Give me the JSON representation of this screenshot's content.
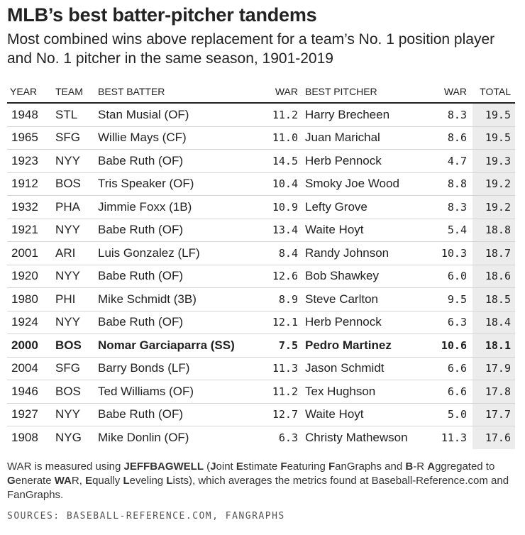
{
  "title": "MLB’s best batter-pitcher tandems",
  "subtitle": "Most combined wins above replacement for a team’s No. 1 position player and No. 1 pitcher in the same season, 1901-2019",
  "footnote_parts": [
    {
      "text": "WAR is measured using ",
      "bold": false
    },
    {
      "text": "JEFFBAGWELL",
      "bold": true
    },
    {
      "text": " (",
      "bold": false
    },
    {
      "text": "J",
      "bold": true
    },
    {
      "text": "oint ",
      "bold": false
    },
    {
      "text": "E",
      "bold": true
    },
    {
      "text": "stimate ",
      "bold": false
    },
    {
      "text": "F",
      "bold": true
    },
    {
      "text": "eaturing ",
      "bold": false
    },
    {
      "text": "F",
      "bold": true
    },
    {
      "text": "anGraphs and ",
      "bold": false
    },
    {
      "text": "B",
      "bold": true
    },
    {
      "text": "-R ",
      "bold": false
    },
    {
      "text": "A",
      "bold": true
    },
    {
      "text": "ggregated to ",
      "bold": false
    },
    {
      "text": "G",
      "bold": true
    },
    {
      "text": "enerate ",
      "bold": false
    },
    {
      "text": "WA",
      "bold": true
    },
    {
      "text": "R, ",
      "bold": false
    },
    {
      "text": "E",
      "bold": true
    },
    {
      "text": "qually ",
      "bold": false
    },
    {
      "text": "L",
      "bold": true
    },
    {
      "text": "eveling ",
      "bold": false
    },
    {
      "text": "L",
      "bold": true
    },
    {
      "text": "ists), which averages the metrics found at Baseball-Reference.com and FanGraphs.",
      "bold": false
    }
  ],
  "sources": "SOURCES: BASEBALL-REFERENCE.COM, FANGRAPHS",
  "colors": {
    "total_column_bg": "#ececec",
    "rule": "#222222",
    "row_divider": "#d4d4d4"
  },
  "chart_data": {
    "type": "table",
    "title": "MLB’s best batter-pitcher tandems",
    "subtitle": "Most combined wins above replacement for a team’s No. 1 position player and No. 1 pitcher in the same season, 1901-2019",
    "columns": [
      "YEAR",
      "TEAM",
      "BEST BATTER",
      "WAR",
      "BEST PITCHER",
      "WAR",
      "TOTAL"
    ],
    "highlight_year": "2000",
    "rows": [
      {
        "year": "1948",
        "team": "STL",
        "batter": "Stan Musial (OF)",
        "batter_war": "11.2",
        "pitcher": "Harry Brecheen",
        "pitcher_war": "8.3",
        "total": "19.5"
      },
      {
        "year": "1965",
        "team": "SFG",
        "batter": "Willie Mays (CF)",
        "batter_war": "11.0",
        "pitcher": "Juan Marichal",
        "pitcher_war": "8.6",
        "total": "19.5"
      },
      {
        "year": "1923",
        "team": "NYY",
        "batter": "Babe Ruth (OF)",
        "batter_war": "14.5",
        "pitcher": "Herb Pennock",
        "pitcher_war": "4.7",
        "total": "19.3"
      },
      {
        "year": "1912",
        "team": "BOS",
        "batter": "Tris Speaker (OF)",
        "batter_war": "10.4",
        "pitcher": "Smoky Joe Wood",
        "pitcher_war": "8.8",
        "total": "19.2"
      },
      {
        "year": "1932",
        "team": "PHA",
        "batter": "Jimmie Foxx (1B)",
        "batter_war": "10.9",
        "pitcher": "Lefty Grove",
        "pitcher_war": "8.3",
        "total": "19.2"
      },
      {
        "year": "1921",
        "team": "NYY",
        "batter": "Babe Ruth (OF)",
        "batter_war": "13.4",
        "pitcher": "Waite Hoyt",
        "pitcher_war": "5.4",
        "total": "18.8"
      },
      {
        "year": "2001",
        "team": "ARI",
        "batter": "Luis Gonzalez (LF)",
        "batter_war": "8.4",
        "pitcher": "Randy Johnson",
        "pitcher_war": "10.3",
        "total": "18.7"
      },
      {
        "year": "1920",
        "team": "NYY",
        "batter": "Babe Ruth (OF)",
        "batter_war": "12.6",
        "pitcher": "Bob Shawkey",
        "pitcher_war": "6.0",
        "total": "18.6"
      },
      {
        "year": "1980",
        "team": "PHI",
        "batter": "Mike Schmidt (3B)",
        "batter_war": "8.9",
        "pitcher": "Steve Carlton",
        "pitcher_war": "9.5",
        "total": "18.5"
      },
      {
        "year": "1924",
        "team": "NYY",
        "batter": "Babe Ruth (OF)",
        "batter_war": "12.1",
        "pitcher": "Herb Pennock",
        "pitcher_war": "6.3",
        "total": "18.4"
      },
      {
        "year": "2000",
        "team": "BOS",
        "batter": "Nomar Garciaparra (SS)",
        "batter_war": "7.5",
        "pitcher": "Pedro Martinez",
        "pitcher_war": "10.6",
        "total": "18.1"
      },
      {
        "year": "2004",
        "team": "SFG",
        "batter": "Barry Bonds (LF)",
        "batter_war": "11.3",
        "pitcher": "Jason Schmidt",
        "pitcher_war": "6.6",
        "total": "17.9"
      },
      {
        "year": "1946",
        "team": "BOS",
        "batter": "Ted Williams (OF)",
        "batter_war": "11.2",
        "pitcher": "Tex Hughson",
        "pitcher_war": "6.6",
        "total": "17.8"
      },
      {
        "year": "1927",
        "team": "NYY",
        "batter": "Babe Ruth (OF)",
        "batter_war": "12.7",
        "pitcher": "Waite Hoyt",
        "pitcher_war": "5.0",
        "total": "17.7"
      },
      {
        "year": "1908",
        "team": "NYG",
        "batter": "Mike Donlin (OF)",
        "batter_war": "6.3",
        "pitcher": "Christy Mathewson",
        "pitcher_war": "11.3",
        "total": "17.6"
      }
    ]
  }
}
